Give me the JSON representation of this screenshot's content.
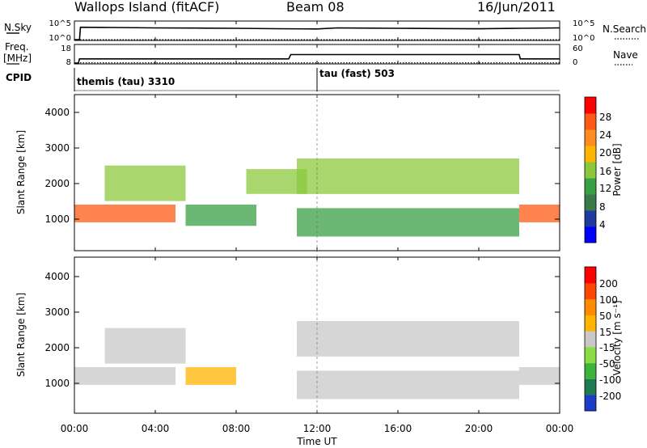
{
  "header": {
    "station": "Wallops Island (fitACF)",
    "beam": "Beam 08",
    "date": "16/Jun/2011"
  },
  "nsky_panel": {
    "left_label": "N.Sky",
    "right_label": "N.Search",
    "left_ticks": [
      "10^5",
      "10^0"
    ],
    "right_ticks": [
      "10^5",
      "10^0"
    ]
  },
  "freq_panel": {
    "left_label_top": "Freq.",
    "left_label_unit": "[MHz]",
    "right_label": "Nave",
    "left_ticks": [
      "18",
      "8"
    ],
    "right_ticks": [
      "60",
      "0"
    ]
  },
  "cpid_panel": {
    "label": "CPID",
    "modes": [
      {
        "name": "themis (tau) 3310"
      },
      {
        "name": "tau (fast) 503"
      }
    ]
  },
  "x_axis": {
    "label": "Time UT",
    "ticks": [
      "00:00",
      "04:00",
      "08:00",
      "12:00",
      "16:00",
      "20:00",
      "00:00"
    ]
  },
  "power_panel": {
    "ylabel": "Slant Range [km]",
    "yticks": [
      "1000",
      "2000",
      "3000",
      "4000"
    ],
    "colorbar_label": "Power [dB]",
    "colorbar_ticks": [
      "28",
      "24",
      "20",
      "16",
      "12",
      "8",
      "4"
    ],
    "colors": [
      "#0000ff",
      "#1e3ca0",
      "#3a7a4a",
      "#3aa046",
      "#8cc83c",
      "#ffb400",
      "#ff8c1e",
      "#ff5a14",
      "#ff0000"
    ]
  },
  "velocity_panel": {
    "ylabel": "Slant Range [km]",
    "yticks": [
      "1000",
      "2000",
      "3000",
      "4000"
    ],
    "colorbar_label": "Velocity [m s⁻¹]",
    "colorbar_ticks": [
      "200",
      "100",
      "50",
      "15",
      "-15",
      "-50",
      "-100",
      "-200"
    ],
    "colors": [
      "#1e3cc8",
      "#1e7a50",
      "#3cb43c",
      "#8cdc46",
      "#c8c8c8",
      "#ffb400",
      "#ff8c00",
      "#ff4600",
      "#ff0000"
    ]
  },
  "chart_data": [
    {
      "type": "line",
      "title": "",
      "xlabel": "",
      "ylabel": "N.Sky",
      "x_range_hours": [
        0,
        24
      ],
      "ylim": [
        0,
        100000
      ],
      "y_scale": "log",
      "series": [
        {
          "name": "N.Sky",
          "x": [
            0,
            0.25,
            0.3,
            2,
            4,
            6,
            8,
            10,
            12,
            13,
            14,
            16,
            18,
            20,
            22,
            24
          ],
          "values": [
            1,
            1,
            3000,
            2500,
            2000,
            1800,
            1500,
            1200,
            1000,
            2000,
            1800,
            1500,
            1300,
            1100,
            1500,
            2000
          ]
        },
        {
          "name": "N.Search",
          "x": [
            0,
            24
          ],
          "values": [
            1,
            1
          ]
        }
      ]
    },
    {
      "type": "line",
      "title": "",
      "xlabel": "",
      "ylabel": "Freq. [MHz]",
      "x_range_hours": [
        0,
        24
      ],
      "ylim": [
        8,
        18
      ],
      "series": [
        {
          "name": "Freq.",
          "x": [
            0,
            0.2,
            0.25,
            10.6,
            10.7,
            22,
            22.05,
            24
          ],
          "values": [
            8,
            8,
            10.5,
            10.5,
            13,
            13,
            10.5,
            10.5
          ]
        },
        {
          "name": "Nave",
          "x": [
            0,
            0.25,
            10.7,
            22,
            24
          ],
          "values": [
            0,
            1,
            1,
            1,
            1
          ]
        }
      ]
    },
    {
      "type": "heatmap",
      "title": "",
      "xlabel": "",
      "ylabel": "Slant Range [km]",
      "x_range_hours": [
        0,
        24
      ],
      "ylim": [
        200,
        4600
      ],
      "colorbar": {
        "label": "Power [dB]",
        "range": [
          0,
          30
        ]
      },
      "regions": [
        {
          "t0": 0.0,
          "t1": 5.0,
          "r0": 1000,
          "r1": 1500,
          "value": 24
        },
        {
          "t0": 1.5,
          "t1": 5.5,
          "r0": 1600,
          "r1": 2600,
          "value": 16
        },
        {
          "t0": 5.5,
          "t1": 9.0,
          "r0": 900,
          "r1": 1500,
          "value": 10
        },
        {
          "t0": 8.5,
          "t1": 11.5,
          "r0": 1800,
          "r1": 2500,
          "value": 14
        },
        {
          "t0": 11.0,
          "t1": 22.0,
          "r0": 600,
          "r1": 1400,
          "value": 12
        },
        {
          "t0": 11.0,
          "t1": 22.0,
          "r0": 1800,
          "r1": 2800,
          "value": 14
        },
        {
          "t0": 22.0,
          "t1": 24.0,
          "r0": 1000,
          "r1": 1500,
          "value": 26
        }
      ]
    },
    {
      "type": "heatmap",
      "title": "",
      "xlabel": "",
      "ylabel": "Slant Range [km]",
      "x_range_hours": [
        0,
        24
      ],
      "ylim": [
        200,
        4600
      ],
      "colorbar": {
        "label": "Velocity [m s⁻¹]",
        "range": [
          -250,
          250
        ]
      },
      "regions": [
        {
          "t0": 0.0,
          "t1": 5.0,
          "r0": 1000,
          "r1": 1500,
          "value": 0
        },
        {
          "t0": 5.5,
          "t1": 8.0,
          "r0": 1000,
          "r1": 1500,
          "value": 60
        },
        {
          "t0": 1.5,
          "t1": 5.5,
          "r0": 1600,
          "r1": 2600,
          "value": 0
        },
        {
          "t0": 11.0,
          "t1": 22.0,
          "r0": 600,
          "r1": 1400,
          "value": 0
        },
        {
          "t0": 11.0,
          "t1": 22.0,
          "r0": 1800,
          "r1": 2800,
          "value": 0
        },
        {
          "t0": 22.0,
          "t1": 24.0,
          "r0": 1000,
          "r1": 1500,
          "value": 0
        }
      ]
    }
  ]
}
